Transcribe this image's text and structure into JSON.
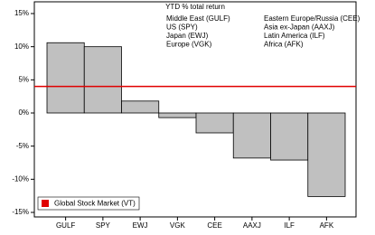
{
  "chart_data": {
    "type": "bar",
    "title": "YTD % total return",
    "categories": [
      "GULF",
      "SPY",
      "EWJ",
      "VGK",
      "CEE",
      "AAXJ",
      "ILF",
      "AFK"
    ],
    "values": [
      10.6,
      10.0,
      1.8,
      -0.7,
      -3.0,
      -6.8,
      -7.1,
      -12.6
    ],
    "color": "#c0c0c0",
    "ylim": [
      -15,
      15
    ],
    "yticks": [
      {
        "value": -15,
        "label": "-15%"
      },
      {
        "value": -10,
        "label": "-10%"
      },
      {
        "value": -5,
        "label": "-5%"
      },
      {
        "value": 0,
        "label": "0%"
      },
      {
        "value": 5,
        "label": "5%"
      },
      {
        "value": 10,
        "label": "10%"
      },
      {
        "value": 15,
        "label": "15%"
      }
    ],
    "notes": [
      "Middle East (GULF)",
      "US (SPY)",
      "Japan (EWJ)",
      "Europe (VGK)",
      "Eastern Europe/Russia (CEE)",
      "Asia ex-Japan (AAXJ)",
      "Latin America (ILF)",
      "Africa (AFK)"
    ],
    "reference_line": {
      "name": "Global Stock Market (VT)",
      "value": 4,
      "color": "#e00000"
    }
  }
}
